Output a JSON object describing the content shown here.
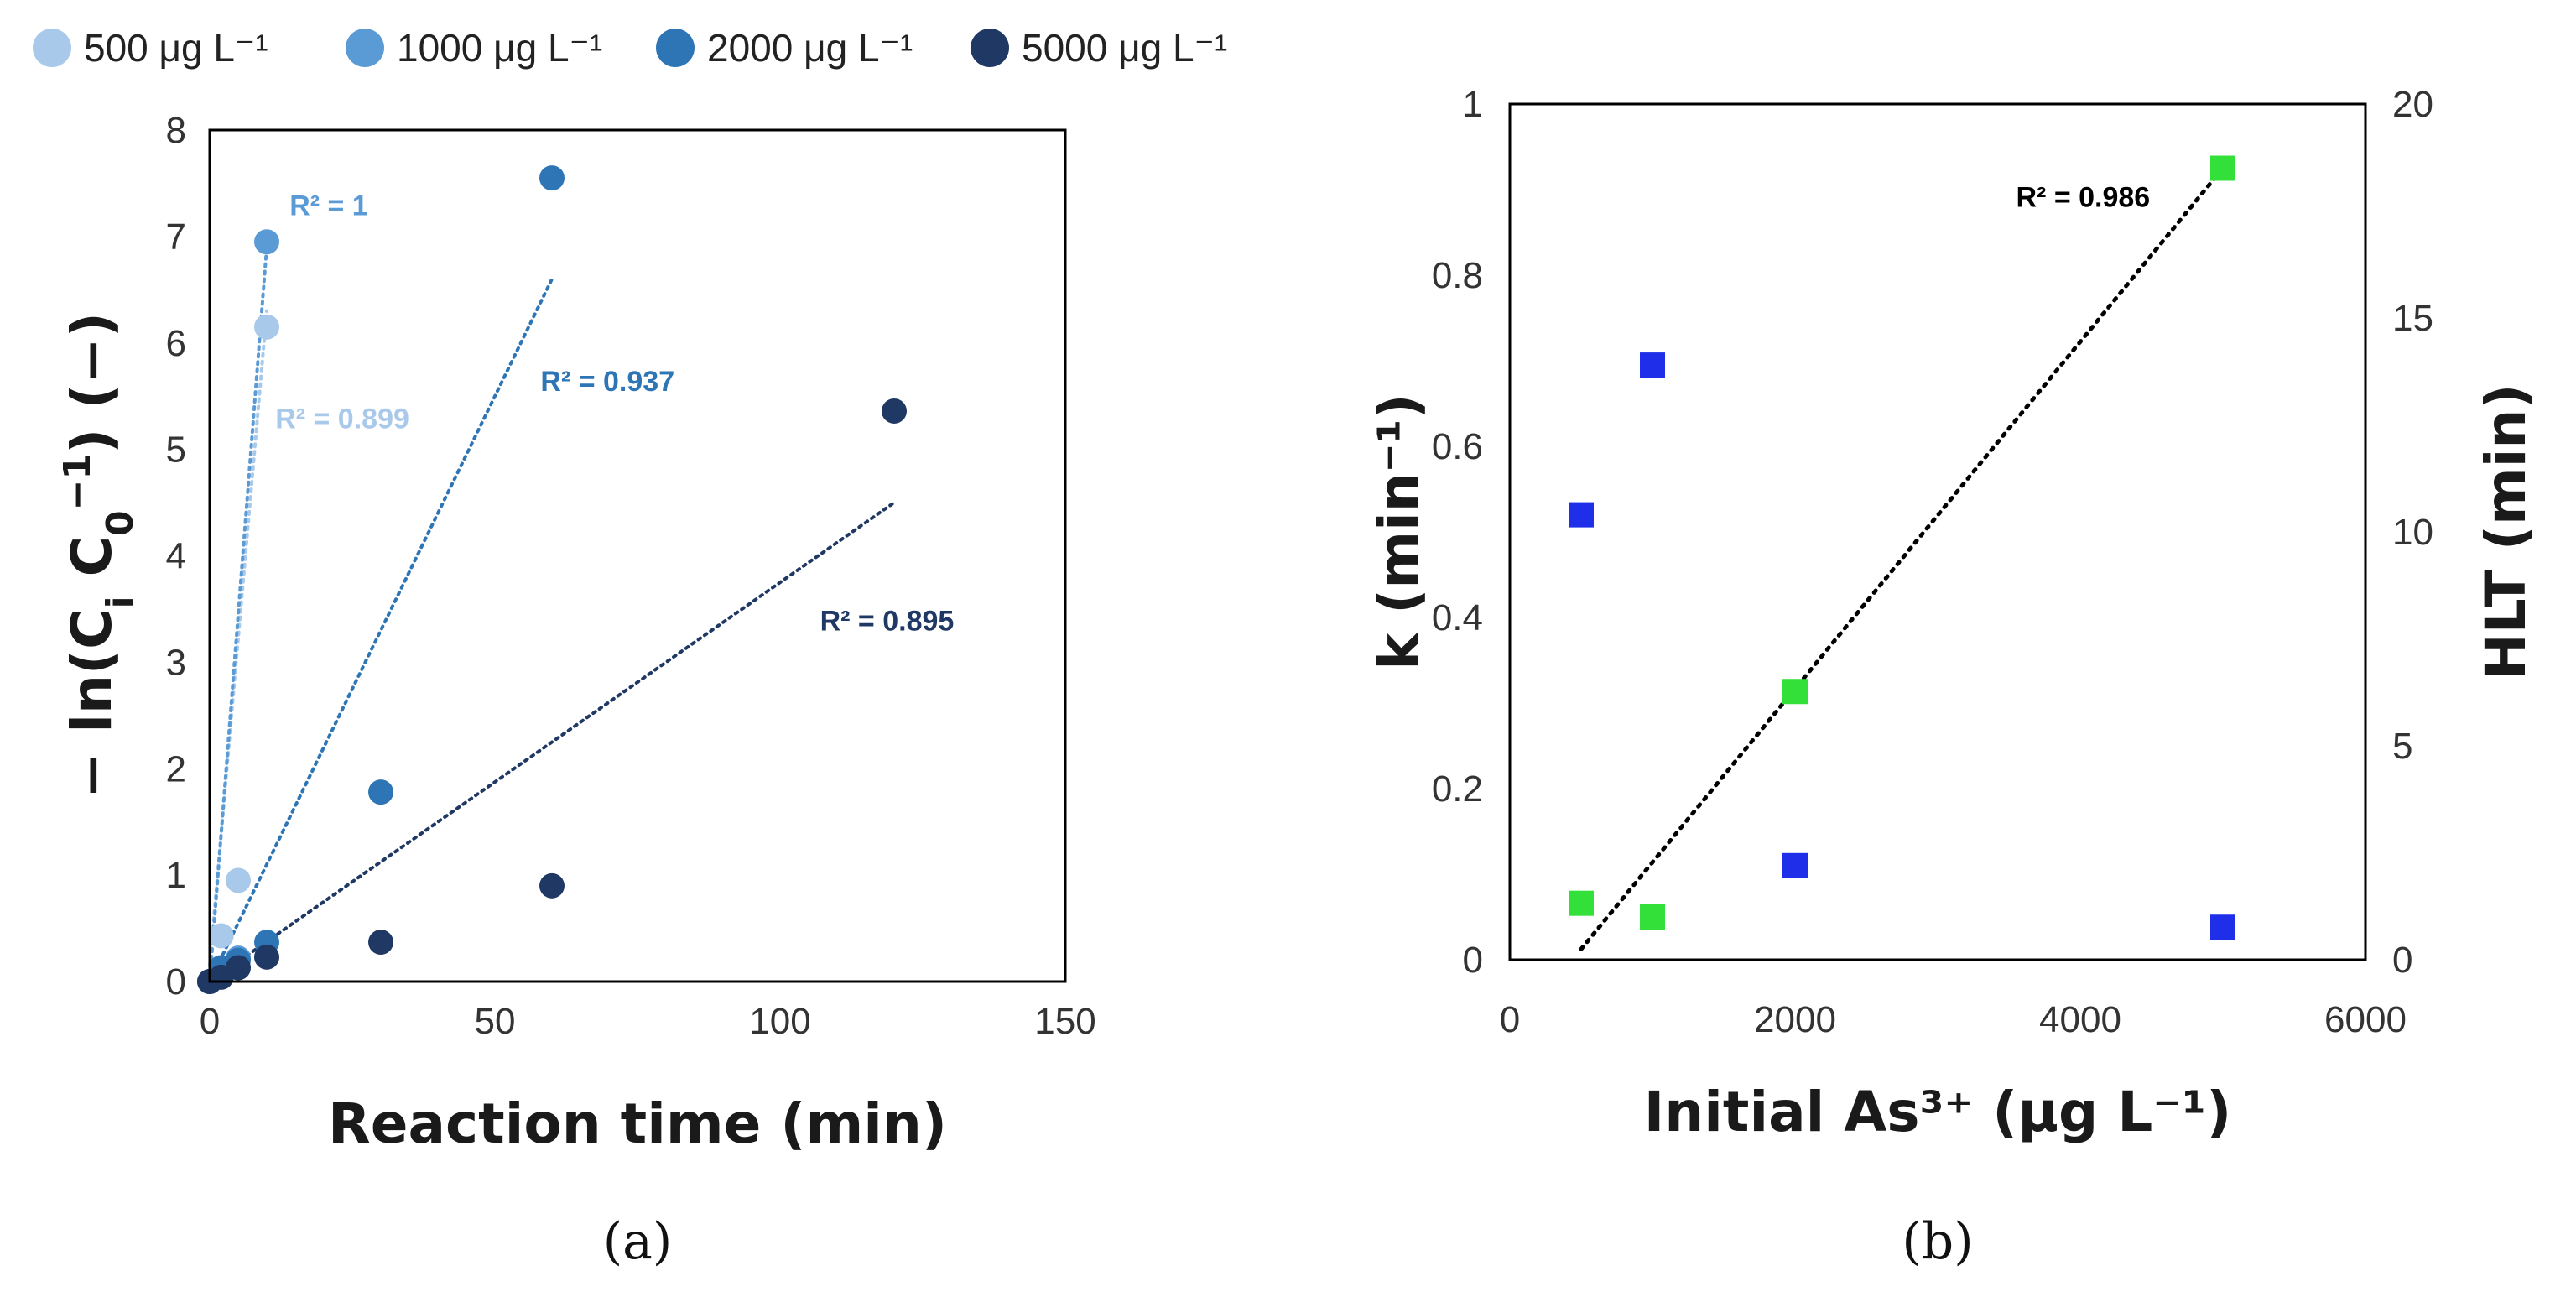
{
  "chart_data": [
    {
      "id": "a",
      "panel_label": "(a)",
      "type": "scatter",
      "xlabel": "Reaction time (min)",
      "ylabel": "− ln(C_i C_0^−1) (−)",
      "ylabel_parts": {
        "pre": "− ln(C",
        "sub1": "i",
        "mid": " C",
        "sub2": "0",
        "sup": "−1",
        "post": ") (−)"
      },
      "xlim": [
        0,
        150
      ],
      "ylim": [
        0,
        8
      ],
      "xticks": [
        0,
        50,
        100,
        150
      ],
      "yticks": [
        0,
        1,
        2,
        3,
        4,
        5,
        6,
        7,
        8
      ],
      "legend_position": "top",
      "series": [
        {
          "name": "500 μg L⁻¹",
          "color": "#a9c9ea",
          "points": [
            [
              0,
              0
            ],
            [
              2,
              0.43
            ],
            [
              5,
              0.95
            ],
            [
              10,
              6.15
            ]
          ],
          "trendline": {
            "x": [
              0,
              10
            ],
            "y": [
              0.15,
              6.3
            ]
          },
          "r2_label": "R² = 0.899",
          "r2_anchor": [
            11.5,
            5.2
          ]
        },
        {
          "name": "1000 μg L⁻¹",
          "color": "#5b9bd5",
          "points": [
            [
              0,
              0
            ],
            [
              2,
              0.1
            ],
            [
              5,
              0.22
            ],
            [
              10,
              6.95
            ]
          ],
          "trendline": {
            "x": [
              0,
              10
            ],
            "y": [
              0,
              6.9
            ]
          },
          "r2_label": "R² = 1",
          "r2_anchor": [
            14,
            7.2
          ]
        },
        {
          "name": "2000 μg L⁻¹",
          "color": "#2e75b6",
          "points": [
            [
              0,
              0
            ],
            [
              2,
              0.13
            ],
            [
              5,
              0.2
            ],
            [
              10,
              0.37
            ],
            [
              30,
              1.78
            ],
            [
              60,
              7.55
            ]
          ],
          "trendline": {
            "x": [
              0,
              60
            ],
            "y": [
              0,
              6.6
            ]
          },
          "r2_label": "R² = 0.937",
          "r2_anchor": [
            58,
            5.55
          ]
        },
        {
          "name": "5000 μg L⁻¹",
          "color": "#203864",
          "points": [
            [
              0,
              0
            ],
            [
              2,
              0.04
            ],
            [
              5,
              0.13
            ],
            [
              10,
              0.23
            ],
            [
              30,
              0.37
            ],
            [
              60,
              0.9
            ],
            [
              120,
              5.36
            ]
          ],
          "trendline": {
            "x": [
              0,
              120
            ],
            "y": [
              0,
              4.5
            ]
          },
          "r2_label": "R² = 0.895",
          "r2_anchor": [
            107,
            3.3
          ]
        }
      ]
    },
    {
      "id": "b",
      "panel_label": "(b)",
      "type": "scatter",
      "xlabel": "Initial As³⁺ (μg L⁻¹)",
      "ylabel_left": "k (min⁻¹)",
      "ylabel_right": "HLT (min)",
      "xlim": [
        0,
        6000
      ],
      "ylim_left": [
        0,
        1
      ],
      "ylim_right": [
        0,
        20
      ],
      "xticks": [
        0,
        2000,
        4000,
        6000
      ],
      "yticks_left": [
        "0",
        "0.2",
        "0.4",
        "0.6",
        "0.8",
        "1"
      ],
      "yticks_right": [
        0,
        5,
        10,
        15,
        20
      ],
      "series": [
        {
          "name": "k",
          "axis": "left",
          "color": "#1f2ee8",
          "marker": "square",
          "points": [
            [
              500,
              0.52
            ],
            [
              1000,
              0.695
            ],
            [
              2000,
              0.11
            ],
            [
              5000,
              0.038
            ]
          ]
        },
        {
          "name": "HLT",
          "axis": "right",
          "color": "#33e03a",
          "marker": "square",
          "points": [
            [
              500,
              1.32
            ],
            [
              1000,
              1.0
            ],
            [
              2000,
              6.27
            ],
            [
              5000,
              18.5
            ]
          ],
          "trendline": {
            "x": [
              500,
              5000
            ],
            "y": [
              0.25,
              18.5
            ]
          },
          "r2_label": "R² = 0.986",
          "r2_anchor": [
            3550,
            17.6
          ]
        }
      ]
    }
  ]
}
